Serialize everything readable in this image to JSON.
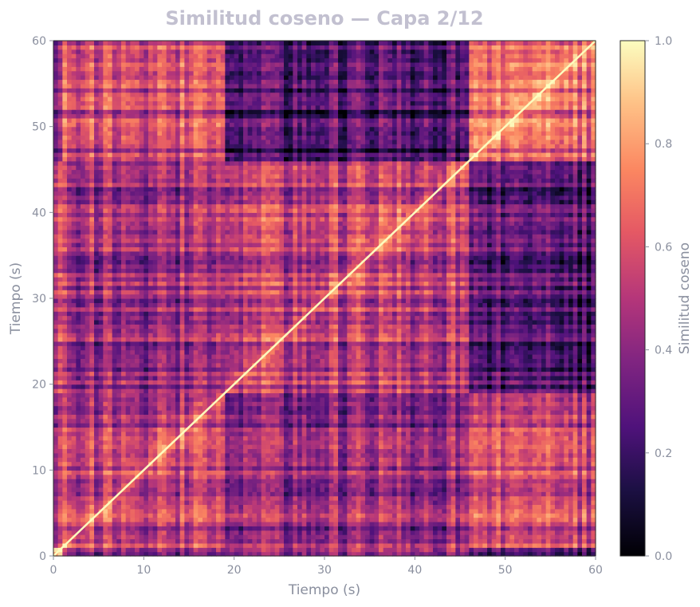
{
  "chart_data": {
    "type": "heatmap",
    "title": "Similitud coseno — Capa 2/12",
    "xlabel": "Tiempo (s)",
    "ylabel": "Tiempo (s)",
    "xlim": [
      0,
      60
    ],
    "ylim": [
      0,
      60
    ],
    "x_ticks": [
      "0",
      "10",
      "20",
      "30",
      "40",
      "50",
      "60"
    ],
    "y_ticks": [
      "0",
      "10",
      "20",
      "30",
      "40",
      "50",
      "60"
    ],
    "colormap": "magma",
    "colorbar": {
      "label": "Similitud coseno",
      "range": [
        0.0,
        1.0
      ],
      "ticks": [
        "0.0",
        "0.2",
        "0.4",
        "0.6",
        "0.8",
        "1.0"
      ]
    },
    "segments": [
      {
        "start": 0,
        "end": 1
      },
      {
        "start": 1,
        "end": 19
      },
      {
        "start": 19,
        "end": 46
      },
      {
        "start": 46,
        "end": 60
      }
    ],
    "block_similarity": [
      [
        0.85,
        0.45,
        0.5,
        0.3
      ],
      [
        0.45,
        0.52,
        0.42,
        0.55
      ],
      [
        0.5,
        0.42,
        0.5,
        0.22
      ],
      [
        0.3,
        0.55,
        0.22,
        0.62
      ]
    ],
    "grid": false
  }
}
